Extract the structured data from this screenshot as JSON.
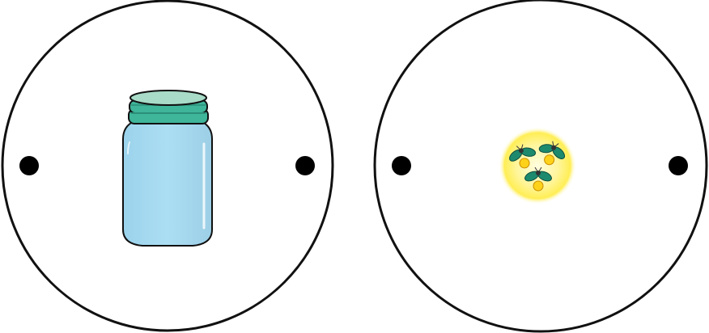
{
  "discs": [
    {
      "name": "jar",
      "content": "mason-jar-icon",
      "holes": 2
    },
    {
      "name": "fireflies",
      "content": "fireflies-icon",
      "firefly_count": 3
    }
  ],
  "colors": {
    "outline": "#111111",
    "jar_body": "#a9dcf2",
    "jar_lid": "#3fb59a",
    "jar_lid_top": "#a8dcc8",
    "glow": "#fff176",
    "firefly_wing": "#1d8a6e",
    "firefly_light": "#ffd21a"
  }
}
